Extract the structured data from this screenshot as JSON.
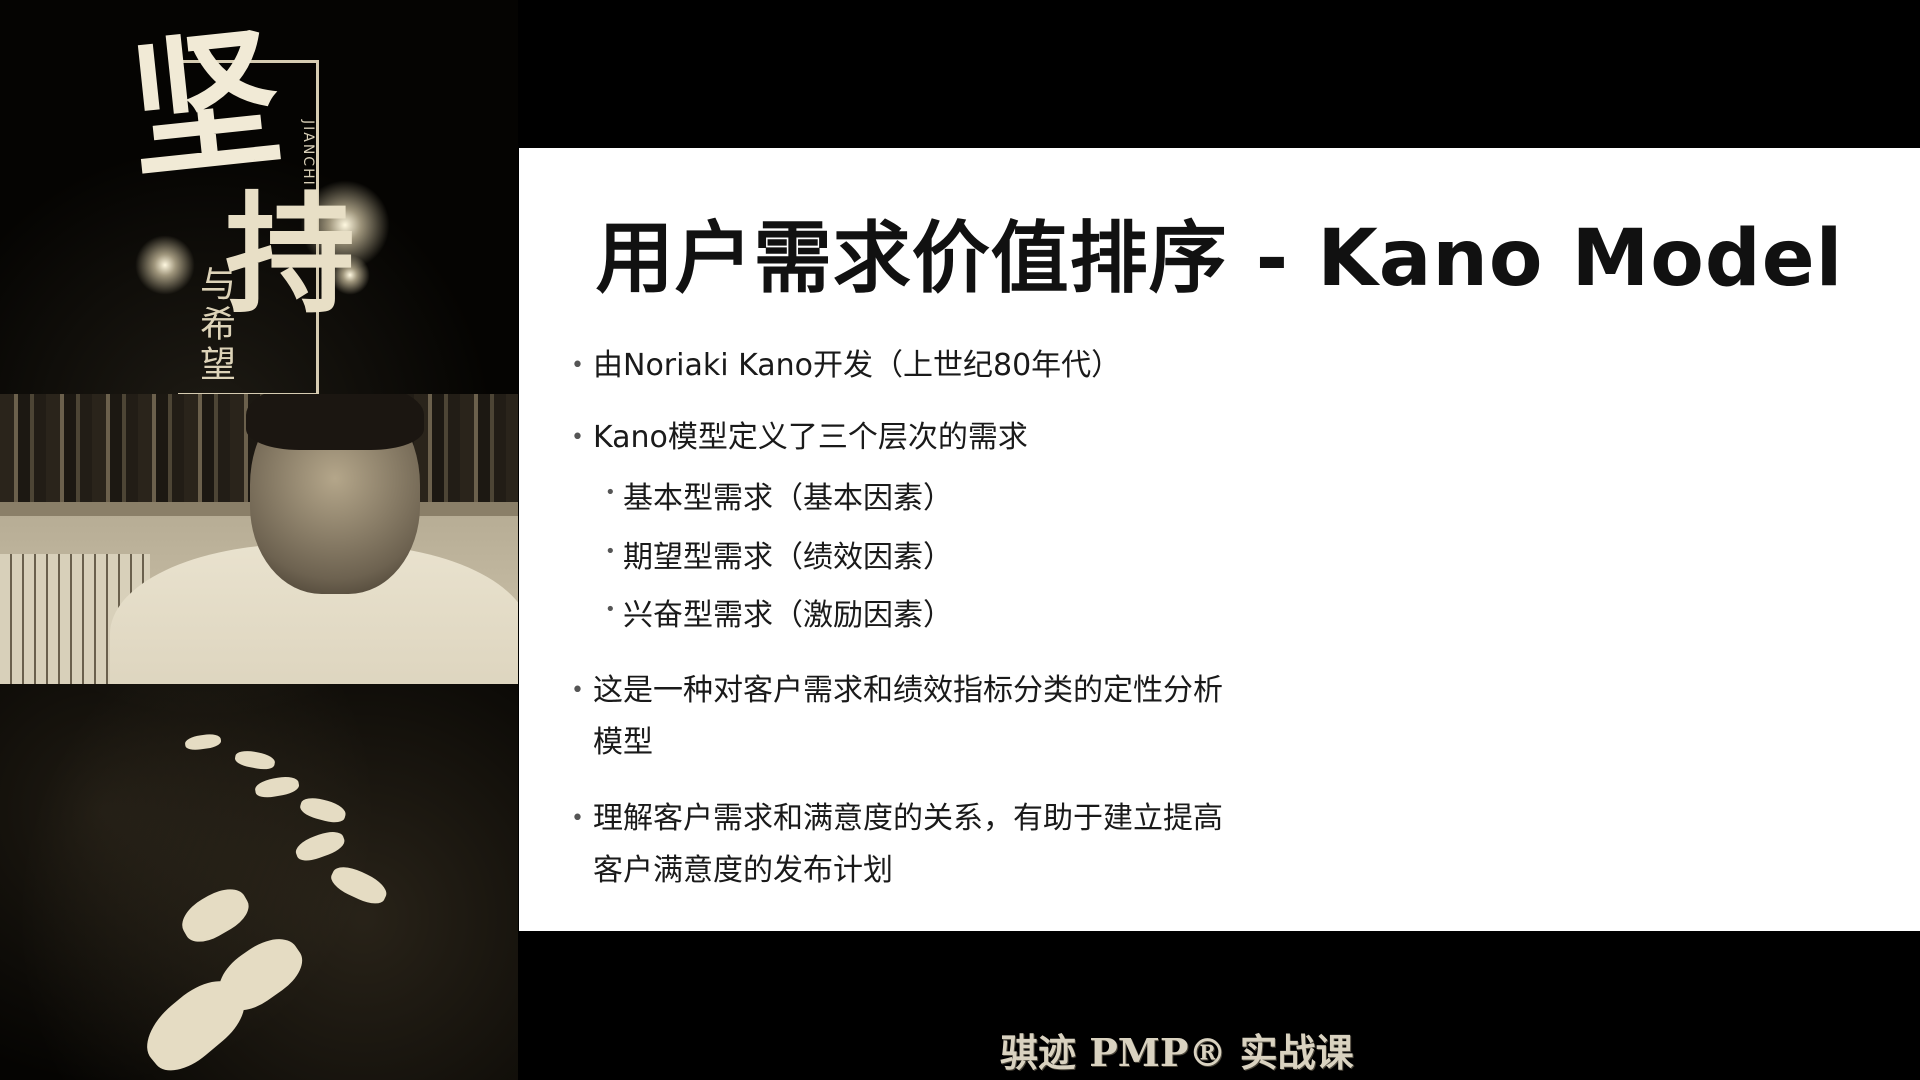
{
  "poster": {
    "char_1": "坚",
    "char_2": "持",
    "small_text": "与希望",
    "pinyin": "JIANCHI"
  },
  "slide": {
    "title": "用户需求价值排序 - Kano Model",
    "bullets": [
      "由Noriaki Kano开发（上世纪80年代）",
      "Kano模型定义了三个层次的需求"
    ],
    "sub_bullets": [
      "基本型需求（基本因素）",
      "期望型需求（绩效因素）",
      "兴奋型需求（激励因素）"
    ],
    "bullet_3_line_1": "这是一种对客户需求和绩效指标分类的定性分析",
    "bullet_3_line_2": "模型",
    "bullet_4_line_1": "理解客户需求和满意度的关系，有助于建立提高",
    "bullet_4_line_2": "客户满意度的发布计划",
    "bullet_glyph": "•"
  },
  "footer": {
    "watermark": "骐迹 PMP® 实战课"
  }
}
